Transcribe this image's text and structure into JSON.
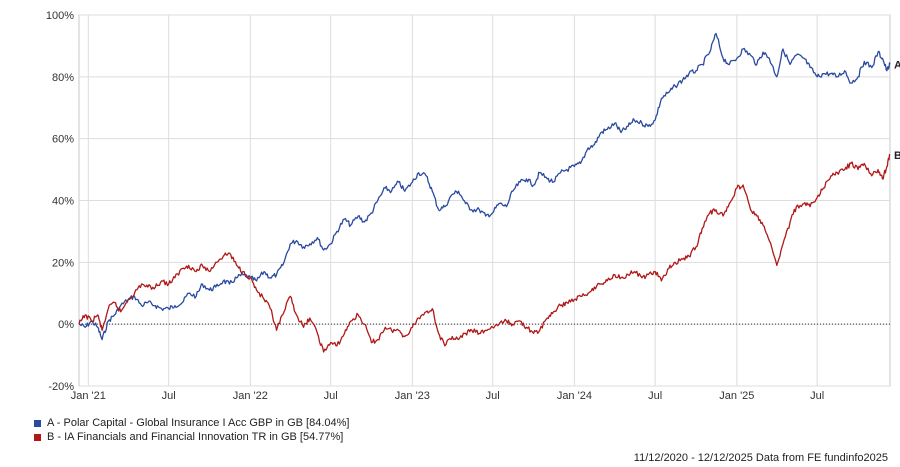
{
  "chart_data": {
    "type": "line",
    "x_range": [
      "2020-12-11",
      "2025-12-12"
    ],
    "ylim": [
      -20,
      100
    ],
    "y_ticks": [
      "100%",
      "80%",
      "60%",
      "40%",
      "20%",
      "0%",
      "-20%"
    ],
    "x_ticks": [
      "Jan '21",
      "Jul",
      "Jan '22",
      "Jul",
      "Jan '23",
      "Jul",
      "Jan '24",
      "Jul",
      "Jan '25",
      "Jul"
    ],
    "grid": true,
    "series": [
      {
        "name": "A - Polar Capital - Global Insurance I Acc GBP in GB [84.04%]",
        "end_label": "A",
        "color": "#2a4aa0",
        "points": [
          [
            "2020-12-11",
            0
          ],
          [
            "2020-12-25",
            -1
          ],
          [
            "2021-01-08",
            1
          ],
          [
            "2021-01-22",
            -1
          ],
          [
            "2021-02-01",
            -5
          ],
          [
            "2021-02-15",
            1
          ],
          [
            "2021-03-01",
            3
          ],
          [
            "2021-03-15",
            6
          ],
          [
            "2021-04-01",
            8
          ],
          [
            "2021-04-15",
            9
          ],
          [
            "2021-05-01",
            6
          ],
          [
            "2021-05-15",
            7
          ],
          [
            "2021-06-01",
            6
          ],
          [
            "2021-06-15",
            5
          ],
          [
            "2021-07-01",
            5
          ],
          [
            "2021-07-15",
            6
          ],
          [
            "2021-08-01",
            7
          ],
          [
            "2021-08-15",
            10
          ],
          [
            "2021-09-01",
            9
          ],
          [
            "2021-09-15",
            13
          ],
          [
            "2021-10-01",
            11
          ],
          [
            "2021-10-15",
            12
          ],
          [
            "2021-11-01",
            14
          ],
          [
            "2021-11-15",
            13
          ],
          [
            "2021-12-01",
            15
          ],
          [
            "2021-12-15",
            16
          ],
          [
            "2022-01-01",
            15
          ],
          [
            "2022-01-15",
            14
          ],
          [
            "2022-02-01",
            17
          ],
          [
            "2022-02-15",
            15
          ],
          [
            "2022-03-01",
            16
          ],
          [
            "2022-03-15",
            19
          ],
          [
            "2022-04-01",
            26
          ],
          [
            "2022-04-15",
            27
          ],
          [
            "2022-05-01",
            25
          ],
          [
            "2022-05-15",
            26
          ],
          [
            "2022-06-01",
            28
          ],
          [
            "2022-06-15",
            24
          ],
          [
            "2022-07-01",
            26
          ],
          [
            "2022-07-15",
            30
          ],
          [
            "2022-08-01",
            34
          ],
          [
            "2022-08-15",
            32
          ],
          [
            "2022-09-01",
            35
          ],
          [
            "2022-09-15",
            33
          ],
          [
            "2022-10-01",
            36
          ],
          [
            "2022-10-15",
            40
          ],
          [
            "2022-11-01",
            44
          ],
          [
            "2022-11-15",
            43
          ],
          [
            "2022-12-01",
            46
          ],
          [
            "2022-12-15",
            43
          ],
          [
            "2023-01-01",
            46
          ],
          [
            "2023-01-15",
            49
          ],
          [
            "2023-02-01",
            48
          ],
          [
            "2023-02-15",
            43
          ],
          [
            "2023-03-01",
            37
          ],
          [
            "2023-03-15",
            38
          ],
          [
            "2023-04-01",
            42
          ],
          [
            "2023-04-15",
            43
          ],
          [
            "2023-05-01",
            39
          ],
          [
            "2023-05-15",
            37
          ],
          [
            "2023-06-01",
            37
          ],
          [
            "2023-06-15",
            35
          ],
          [
            "2023-07-01",
            36
          ],
          [
            "2023-07-15",
            39
          ],
          [
            "2023-08-01",
            38
          ],
          [
            "2023-08-15",
            43
          ],
          [
            "2023-09-01",
            46
          ],
          [
            "2023-09-15",
            47
          ],
          [
            "2023-10-01",
            45
          ],
          [
            "2023-10-15",
            49
          ],
          [
            "2023-11-01",
            47
          ],
          [
            "2023-11-15",
            46
          ],
          [
            "2023-12-01",
            49
          ],
          [
            "2023-12-15",
            50
          ],
          [
            "2024-01-01",
            51
          ],
          [
            "2024-01-15",
            52
          ],
          [
            "2024-02-01",
            57
          ],
          [
            "2024-02-15",
            58
          ],
          [
            "2024-03-01",
            62
          ],
          [
            "2024-03-15",
            63
          ],
          [
            "2024-04-01",
            65
          ],
          [
            "2024-04-15",
            62
          ],
          [
            "2024-05-01",
            64
          ],
          [
            "2024-05-15",
            66
          ],
          [
            "2024-06-01",
            65
          ],
          [
            "2024-06-15",
            64
          ],
          [
            "2024-07-01",
            66
          ],
          [
            "2024-07-15",
            73
          ],
          [
            "2024-08-01",
            75
          ],
          [
            "2024-08-15",
            77
          ],
          [
            "2024-09-01",
            79
          ],
          [
            "2024-09-15",
            81
          ],
          [
            "2024-10-01",
            82
          ],
          [
            "2024-10-15",
            84
          ],
          [
            "2024-11-01",
            88
          ],
          [
            "2024-11-15",
            94
          ],
          [
            "2024-12-01",
            86
          ],
          [
            "2024-12-15",
            84
          ],
          [
            "2025-01-01",
            86
          ],
          [
            "2025-01-15",
            89
          ],
          [
            "2025-02-01",
            87
          ],
          [
            "2025-02-15",
            84
          ],
          [
            "2025-03-01",
            88
          ],
          [
            "2025-03-15",
            86
          ],
          [
            "2025-04-01",
            80
          ],
          [
            "2025-04-15",
            89
          ],
          [
            "2025-05-01",
            84
          ],
          [
            "2025-05-15",
            87
          ],
          [
            "2025-06-01",
            86
          ],
          [
            "2025-06-15",
            83
          ],
          [
            "2025-07-01",
            80
          ],
          [
            "2025-07-15",
            81
          ],
          [
            "2025-08-01",
            81
          ],
          [
            "2025-08-15",
            80
          ],
          [
            "2025-09-01",
            82
          ],
          [
            "2025-09-15",
            78
          ],
          [
            "2025-10-01",
            80
          ],
          [
            "2025-10-15",
            85
          ],
          [
            "2025-11-01",
            83
          ],
          [
            "2025-11-15",
            88
          ],
          [
            "2025-11-25",
            86
          ],
          [
            "2025-12-05",
            82
          ],
          [
            "2025-12-12",
            84.04
          ]
        ]
      },
      {
        "name": "B - IA Financials and Financial Innovation TR in GB [54.77%]",
        "end_label": "B",
        "color": "#b01818",
        "points": [
          [
            "2020-12-11",
            0
          ],
          [
            "2020-12-25",
            3
          ],
          [
            "2021-01-08",
            1
          ],
          [
            "2021-01-22",
            3
          ],
          [
            "2021-02-01",
            -2
          ],
          [
            "2021-02-15",
            5
          ],
          [
            "2021-03-01",
            7
          ],
          [
            "2021-03-15",
            4
          ],
          [
            "2021-04-01",
            8
          ],
          [
            "2021-04-15",
            10
          ],
          [
            "2021-05-01",
            13
          ],
          [
            "2021-05-15",
            12
          ],
          [
            "2021-06-01",
            12
          ],
          [
            "2021-06-15",
            14
          ],
          [
            "2021-07-01",
            13
          ],
          [
            "2021-07-15",
            15
          ],
          [
            "2021-08-01",
            18
          ],
          [
            "2021-08-15",
            19
          ],
          [
            "2021-09-01",
            17
          ],
          [
            "2021-09-15",
            19
          ],
          [
            "2021-10-01",
            17
          ],
          [
            "2021-10-15",
            20
          ],
          [
            "2021-11-01",
            22
          ],
          [
            "2021-11-15",
            23
          ],
          [
            "2021-12-01",
            19
          ],
          [
            "2021-12-15",
            17
          ],
          [
            "2022-01-01",
            15
          ],
          [
            "2022-01-15",
            11
          ],
          [
            "2022-02-01",
            8
          ],
          [
            "2022-02-15",
            5
          ],
          [
            "2022-03-01",
            -2
          ],
          [
            "2022-03-15",
            3
          ],
          [
            "2022-04-01",
            9
          ],
          [
            "2022-04-15",
            3
          ],
          [
            "2022-05-01",
            -1
          ],
          [
            "2022-05-15",
            2
          ],
          [
            "2022-06-01",
            -3
          ],
          [
            "2022-06-15",
            -9
          ],
          [
            "2022-07-01",
            -6
          ],
          [
            "2022-07-15",
            -7
          ],
          [
            "2022-08-01",
            -3
          ],
          [
            "2022-08-15",
            1
          ],
          [
            "2022-09-01",
            3
          ],
          [
            "2022-09-15",
            0
          ],
          [
            "2022-10-01",
            -6
          ],
          [
            "2022-10-15",
            -5
          ],
          [
            "2022-11-01",
            -1
          ],
          [
            "2022-11-15",
            -2
          ],
          [
            "2022-12-01",
            -2
          ],
          [
            "2022-12-15",
            -4
          ],
          [
            "2023-01-01",
            -1
          ],
          [
            "2023-01-15",
            2
          ],
          [
            "2023-02-01",
            4
          ],
          [
            "2023-02-15",
            5
          ],
          [
            "2023-03-01",
            -3
          ],
          [
            "2023-03-15",
            -7
          ],
          [
            "2023-04-01",
            -4
          ],
          [
            "2023-04-15",
            -5
          ],
          [
            "2023-05-01",
            -3
          ],
          [
            "2023-05-15",
            -2
          ],
          [
            "2023-06-01",
            -3
          ],
          [
            "2023-06-15",
            -2
          ],
          [
            "2023-07-01",
            -1
          ],
          [
            "2023-07-15",
            0
          ],
          [
            "2023-08-01",
            1
          ],
          [
            "2023-08-15",
            0
          ],
          [
            "2023-09-01",
            1
          ],
          [
            "2023-09-15",
            -1
          ],
          [
            "2023-10-01",
            -3
          ],
          [
            "2023-10-15",
            -2
          ],
          [
            "2023-11-01",
            2
          ],
          [
            "2023-11-15",
            4
          ],
          [
            "2023-12-01",
            6
          ],
          [
            "2023-12-15",
            7
          ],
          [
            "2024-01-01",
            8
          ],
          [
            "2024-01-15",
            9
          ],
          [
            "2024-02-01",
            10
          ],
          [
            "2024-02-15",
            12
          ],
          [
            "2024-03-01",
            13
          ],
          [
            "2024-03-15",
            14
          ],
          [
            "2024-04-01",
            16
          ],
          [
            "2024-04-15",
            15
          ],
          [
            "2024-05-01",
            16
          ],
          [
            "2024-05-15",
            17
          ],
          [
            "2024-06-01",
            15
          ],
          [
            "2024-06-15",
            16
          ],
          [
            "2024-07-01",
            17
          ],
          [
            "2024-07-15",
            14
          ],
          [
            "2024-08-01",
            18
          ],
          [
            "2024-08-15",
            20
          ],
          [
            "2024-09-01",
            21
          ],
          [
            "2024-09-15",
            22
          ],
          [
            "2024-10-01",
            25
          ],
          [
            "2024-10-15",
            31
          ],
          [
            "2024-11-01",
            36
          ],
          [
            "2024-11-15",
            37
          ],
          [
            "2024-12-01",
            35
          ],
          [
            "2024-12-15",
            39
          ],
          [
            "2025-01-01",
            44
          ],
          [
            "2025-01-15",
            45
          ],
          [
            "2025-02-01",
            37
          ],
          [
            "2025-02-15",
            35
          ],
          [
            "2025-03-01",
            32
          ],
          [
            "2025-03-15",
            27
          ],
          [
            "2025-04-01",
            19
          ],
          [
            "2025-04-15",
            26
          ],
          [
            "2025-05-01",
            33
          ],
          [
            "2025-05-15",
            38
          ],
          [
            "2025-06-01",
            39
          ],
          [
            "2025-06-15",
            38
          ],
          [
            "2025-07-01",
            41
          ],
          [
            "2025-07-15",
            44
          ],
          [
            "2025-08-01",
            48
          ],
          [
            "2025-08-15",
            49
          ],
          [
            "2025-09-01",
            50
          ],
          [
            "2025-09-15",
            52
          ],
          [
            "2025-10-01",
            50
          ],
          [
            "2025-10-15",
            52
          ],
          [
            "2025-11-01",
            48
          ],
          [
            "2025-11-15",
            50
          ],
          [
            "2025-11-25",
            47
          ],
          [
            "2025-12-05",
            51
          ],
          [
            "2025-12-12",
            54.77
          ]
        ]
      }
    ]
  },
  "footer": {
    "source": "11/12/2020 - 12/12/2025 Data from FE fundinfo2025"
  }
}
